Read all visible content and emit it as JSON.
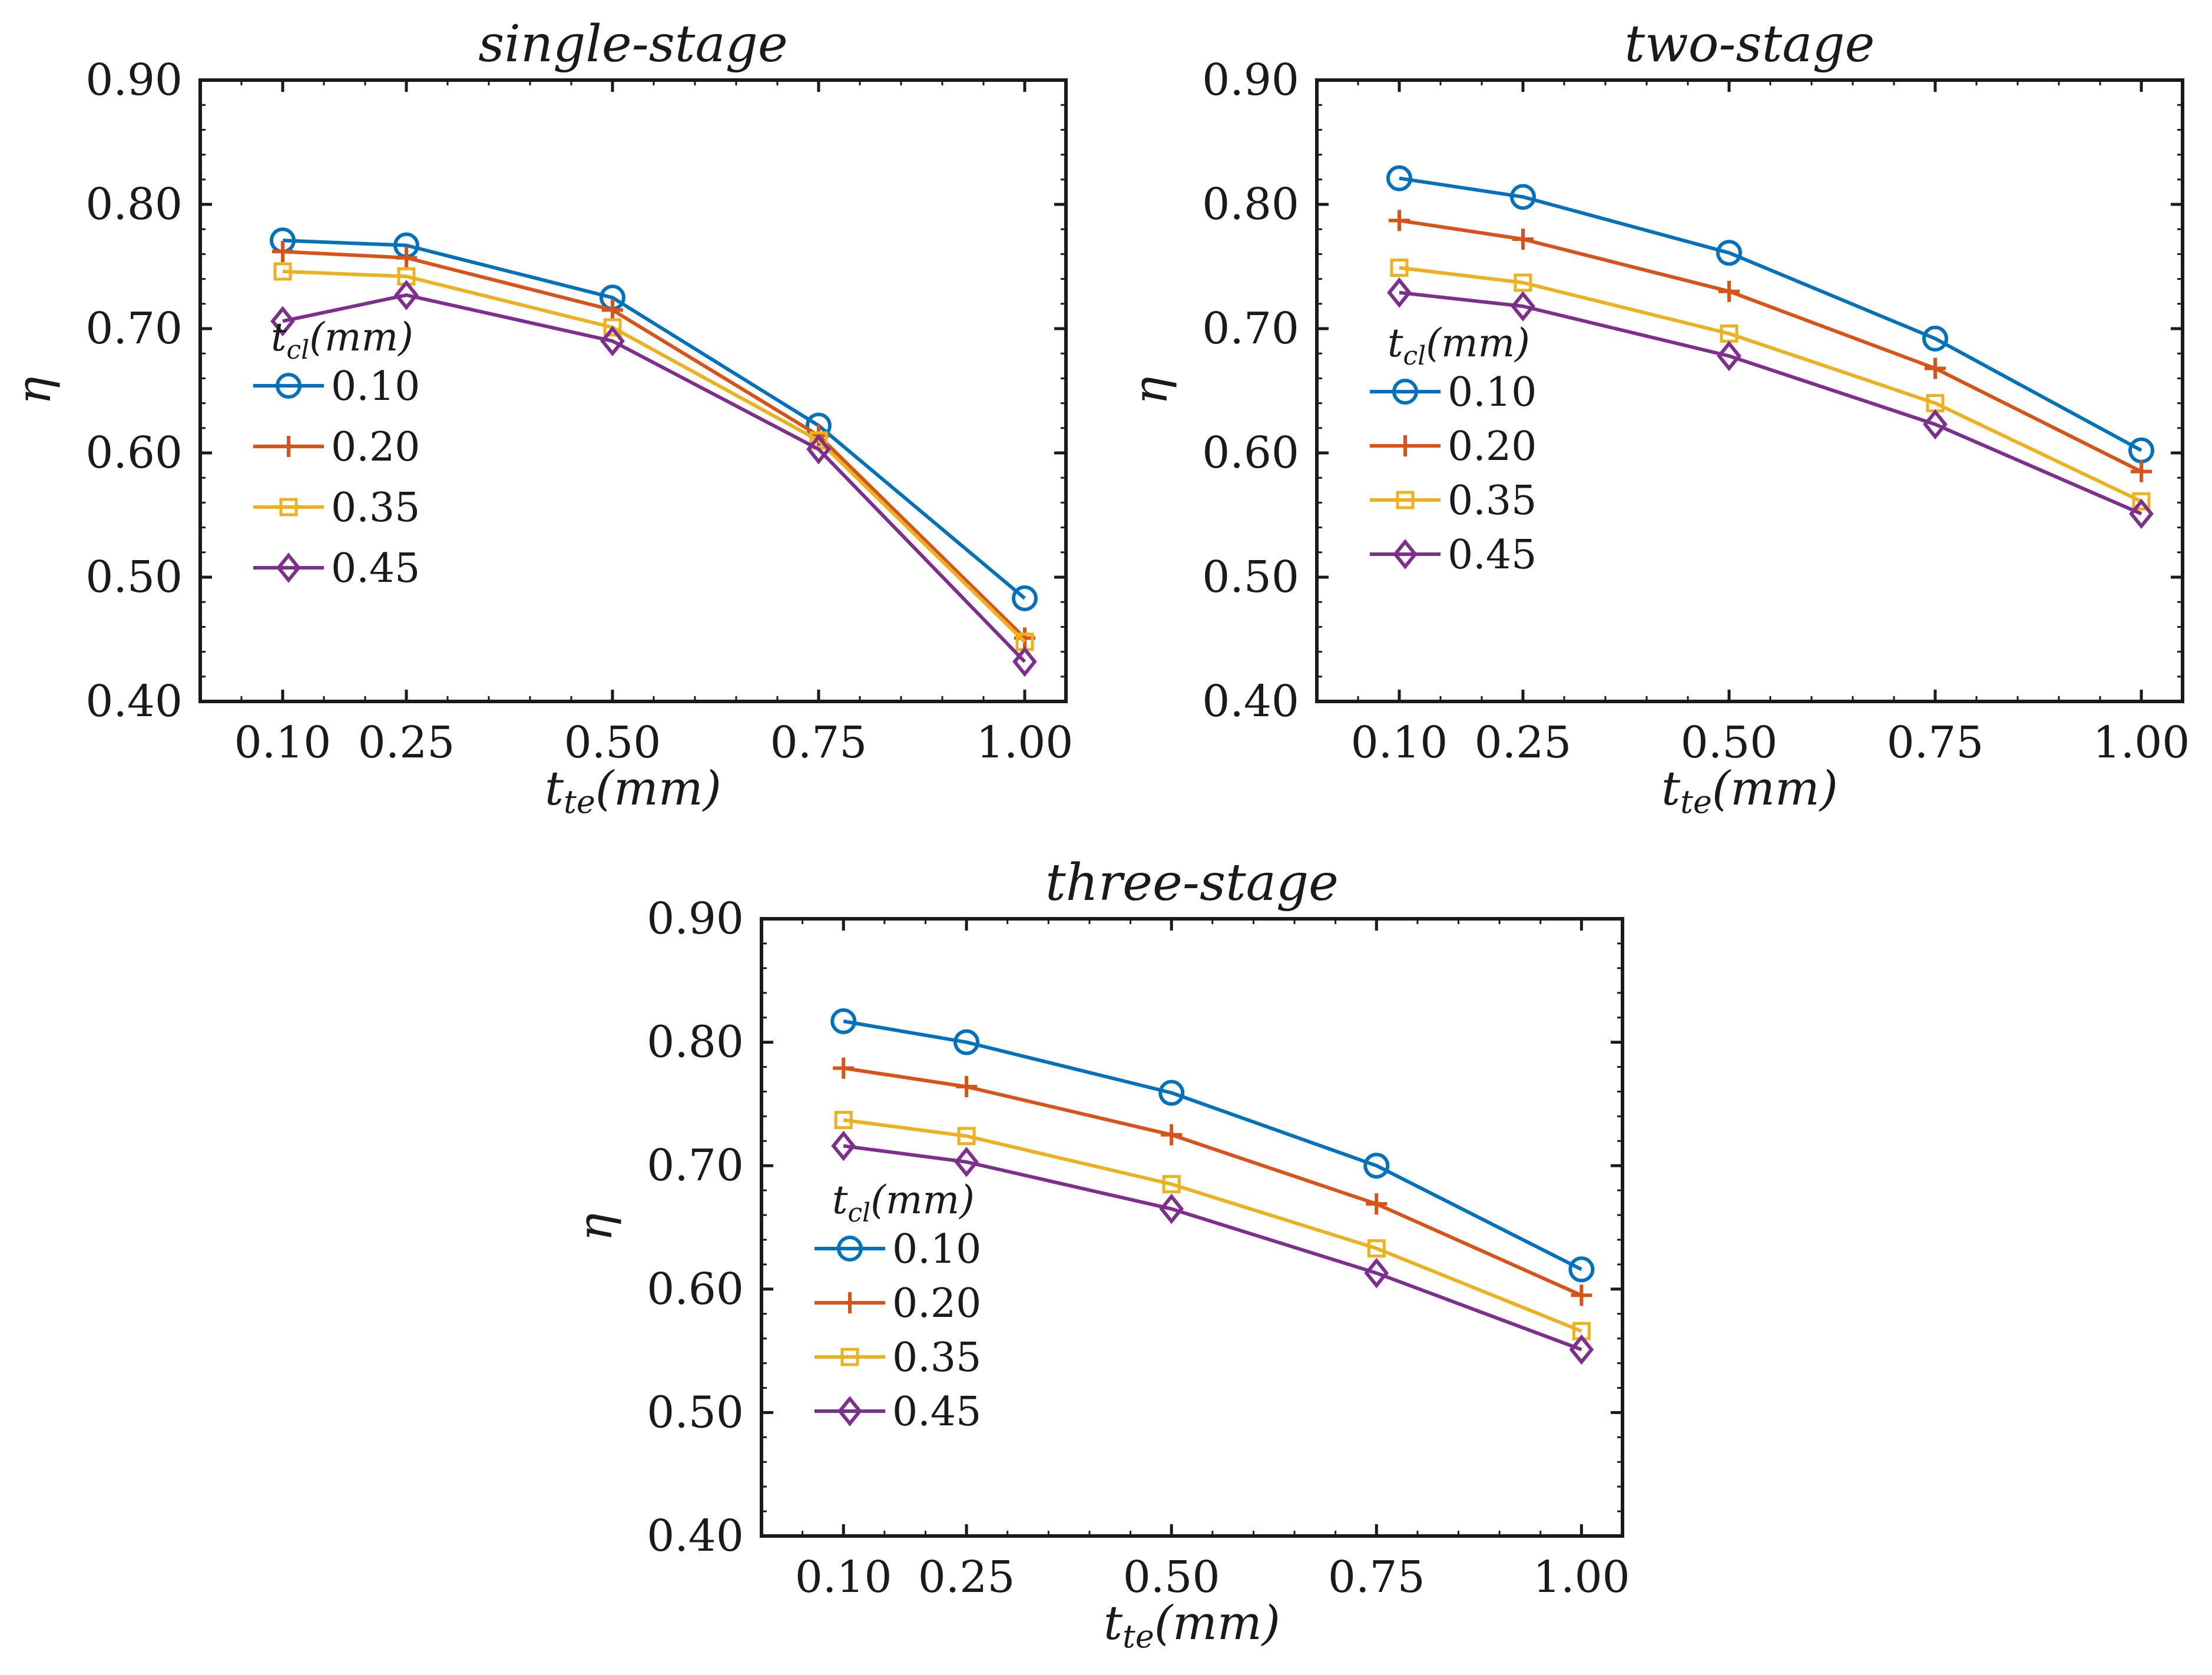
{
  "colors": {
    "s0": "#0072BD",
    "s1": "#D95319",
    "s2": "#EDB120",
    "s3": "#7E2F8E",
    "axis": "#1a1a1a"
  },
  "chart_data": [
    {
      "type": "line",
      "title": "single-stage",
      "xlabel": "t_te(mm)",
      "xlabel_base": "t",
      "xlabel_sub": "te",
      "xlabel_tail": "(mm)",
      "ylabel": "η",
      "x": [
        0.1,
        0.25,
        0.5,
        0.75,
        1.0
      ],
      "x_tick_labels": [
        "0.10",
        "0.25",
        "0.50",
        "0.75",
        "1.00"
      ],
      "y_tick_labels": [
        "0.40",
        "0.50",
        "0.60",
        "0.70",
        "0.80",
        "0.90"
      ],
      "y_ticks": [
        0.4,
        0.5,
        0.6,
        0.7,
        0.8,
        0.9
      ],
      "xlim": [
        0.0,
        1.05
      ],
      "ylim": [
        0.4,
        0.9
      ],
      "legend_title": "t_cl(mm)",
      "legend_title_base": "t",
      "legend_title_sub": "cl",
      "legend_title_tail": "(mm)",
      "legend_position": "lower-left",
      "series": [
        {
          "name": "0.10",
          "marker": "circle",
          "values": [
            0.771,
            0.767,
            0.725,
            0.622,
            0.483
          ]
        },
        {
          "name": "0.20",
          "marker": "plus",
          "values": [
            0.762,
            0.757,
            0.715,
            0.614,
            0.451
          ]
        },
        {
          "name": "0.35",
          "marker": "square",
          "values": [
            0.746,
            0.742,
            0.701,
            0.61,
            0.448
          ]
        },
        {
          "name": "0.45",
          "marker": "diamond",
          "values": [
            0.706,
            0.727,
            0.69,
            0.603,
            0.432
          ]
        }
      ]
    },
    {
      "type": "line",
      "title": "two-stage",
      "xlabel": "t_te(mm)",
      "xlabel_base": "t",
      "xlabel_sub": "te",
      "xlabel_tail": "(mm)",
      "ylabel": "η",
      "x": [
        0.1,
        0.25,
        0.5,
        0.75,
        1.0
      ],
      "x_tick_labels": [
        "0.10",
        "0.25",
        "0.50",
        "0.75",
        "1.00"
      ],
      "y_tick_labels": [
        "0.40",
        "0.50",
        "0.60",
        "0.70",
        "0.80",
        "0.90"
      ],
      "y_ticks": [
        0.4,
        0.5,
        0.6,
        0.7,
        0.8,
        0.9
      ],
      "xlim": [
        0.0,
        1.05
      ],
      "ylim": [
        0.4,
        0.9
      ],
      "legend_title": "t_cl(mm)",
      "legend_title_base": "t",
      "legend_title_sub": "cl",
      "legend_title_tail": "(mm)",
      "legend_position": "lower-left",
      "series": [
        {
          "name": "0.10",
          "marker": "circle",
          "values": [
            0.821,
            0.806,
            0.761,
            0.692,
            0.602
          ]
        },
        {
          "name": "0.20",
          "marker": "plus",
          "values": [
            0.787,
            0.772,
            0.73,
            0.668,
            0.585
          ]
        },
        {
          "name": "0.35",
          "marker": "square",
          "values": [
            0.749,
            0.737,
            0.696,
            0.64,
            0.561
          ]
        },
        {
          "name": "0.45",
          "marker": "diamond",
          "values": [
            0.729,
            0.718,
            0.678,
            0.623,
            0.551
          ]
        }
      ]
    },
    {
      "type": "line",
      "title": "three-stage",
      "xlabel": "t_te(mm)",
      "xlabel_base": "t",
      "xlabel_sub": "te",
      "xlabel_tail": "(mm)",
      "ylabel": "η",
      "x": [
        0.1,
        0.25,
        0.5,
        0.75,
        1.0
      ],
      "x_tick_labels": [
        "0.10",
        "0.25",
        "0.50",
        "0.75",
        "1.00"
      ],
      "y_tick_labels": [
        "0.40",
        "0.50",
        "0.60",
        "0.70",
        "0.80",
        "0.90"
      ],
      "y_ticks": [
        0.4,
        0.5,
        0.6,
        0.7,
        0.8,
        0.9
      ],
      "xlim": [
        0.0,
        1.05
      ],
      "ylim": [
        0.4,
        0.9
      ],
      "legend_title": "t_cl(mm)",
      "legend_title_base": "t",
      "legend_title_sub": "cl",
      "legend_title_tail": "(mm)",
      "legend_position": "lower-left",
      "series": [
        {
          "name": "0.10",
          "marker": "circle",
          "values": [
            0.817,
            0.8,
            0.759,
            0.7,
            0.616
          ]
        },
        {
          "name": "0.20",
          "marker": "plus",
          "values": [
            0.779,
            0.764,
            0.725,
            0.669,
            0.595
          ]
        },
        {
          "name": "0.35",
          "marker": "square",
          "values": [
            0.737,
            0.724,
            0.685,
            0.633,
            0.566
          ]
        },
        {
          "name": "0.45",
          "marker": "diamond",
          "values": [
            0.716,
            0.703,
            0.665,
            0.613,
            0.551
          ]
        }
      ]
    }
  ]
}
